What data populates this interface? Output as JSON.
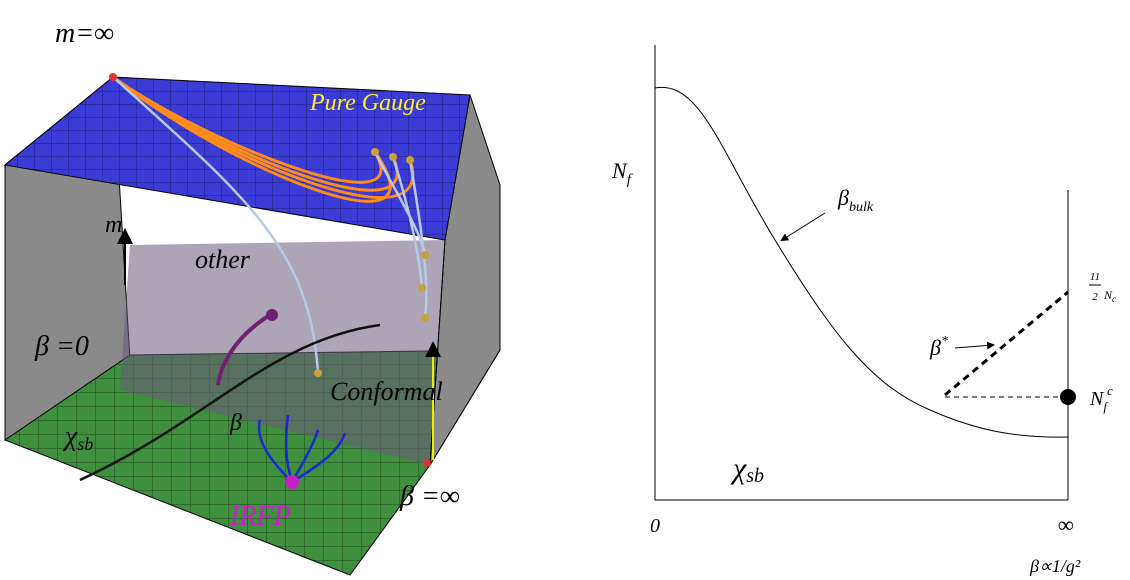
{
  "cube": {
    "top_label": "m=∞",
    "pure_gauge": "Pure Gauge",
    "m_axis": "m",
    "other": "other",
    "beta_zero": "β =0",
    "conformal": "Conformal",
    "chi": {
      "base": "χ",
      "sub": "sb"
    },
    "beta": "β",
    "irfp": "IRFP",
    "beta_inf": "β =∞"
  },
  "plot": {
    "y_label": {
      "base": "N",
      "sub": "f"
    },
    "beta_bulk": {
      "base": "β",
      "sub": "bulk"
    },
    "limit": {
      "num": "11",
      "den": "2",
      "tail": "N",
      "sub": "c"
    },
    "beta_star": {
      "base": "β",
      "sup": "*"
    },
    "nfc": {
      "base": "N",
      "sub": "f",
      "sup": "c"
    },
    "chi": {
      "base": "χ",
      "sub": "sb"
    },
    "x_zero": "0",
    "x_inf": "∞",
    "x_label": "β∝1/g²"
  }
}
